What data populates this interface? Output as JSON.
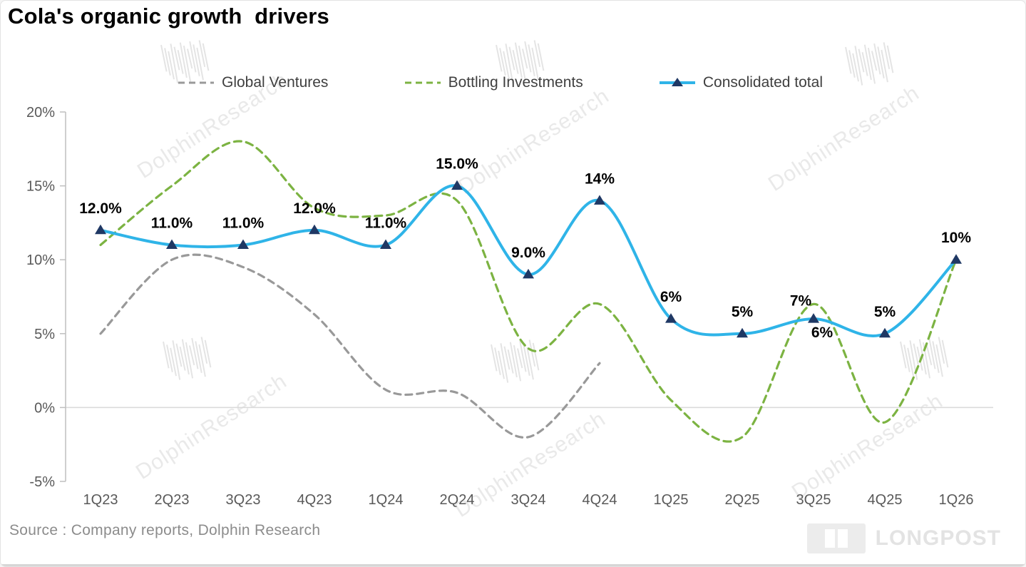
{
  "title": "Cola's organic growth  drivers",
  "source": "Source : Company reports, Dolphin Research",
  "watermark": {
    "text": "DolphinResearch",
    "brand": "LONGPOST"
  },
  "legend": [
    {
      "label": "Global Ventures",
      "color": "#999999",
      "style": "dashed"
    },
    {
      "label": "Bottling Investments",
      "color": "#7cb342",
      "style": "dashed"
    },
    {
      "label": "Consolidated total",
      "color": "#2fb4e8",
      "style": "solid-triangle",
      "marker_color": "#1f3864"
    }
  ],
  "chart_data": {
    "type": "line",
    "title": "Cola's organic growth drivers",
    "categories": [
      "1Q23",
      "2Q23",
      "3Q23",
      "4Q23",
      "1Q24",
      "2Q24",
      "3Q24",
      "4Q24",
      "1Q25",
      "2Q25",
      "3Q25",
      "4Q25",
      "1Q26"
    ],
    "ylim": [
      -5,
      20
    ],
    "grid": "zero-line-only",
    "legend_position": "top",
    "yticks": [
      {
        "value": 20,
        "label": "20%"
      },
      {
        "value": 15,
        "label": "15%"
      },
      {
        "value": 10,
        "label": "10%"
      },
      {
        "value": 5,
        "label": "5%"
      },
      {
        "value": 0,
        "label": "0%"
      },
      {
        "value": -5,
        "label": "-5%"
      }
    ],
    "series": [
      {
        "name": "Global Ventures",
        "color": "#999999",
        "dash": "9 7",
        "width": 3.2,
        "values": [
          5,
          10,
          9.5,
          6.3,
          1.2,
          1,
          -2,
          3,
          null,
          null,
          null,
          null,
          null
        ]
      },
      {
        "name": "Bottling Investments",
        "color": "#7cb342",
        "dash": "10 7",
        "width": 3.2,
        "values": [
          11,
          15,
          18,
          13.5,
          13,
          14,
          4,
          7,
          0.5,
          -2,
          7,
          -1,
          10
        ]
      },
      {
        "name": "Consolidated total",
        "color": "#2fb4e8",
        "dash": null,
        "width": 4,
        "marker": "triangle",
        "marker_color": "#1f3864",
        "values": [
          12,
          11,
          11,
          12,
          11,
          15,
          9,
          14,
          6,
          5,
          6,
          5,
          10
        ],
        "labels": [
          "12.0%",
          "11.0%",
          "11.0%",
          "12.0%",
          "11.0%",
          "15.0%",
          "9.0%",
          "14%",
          "6%",
          "5%",
          "6%",
          "5%",
          "10%"
        ],
        "label_overrides": {
          "10": {
            "dx": 12,
            "dy": 26
          }
        }
      }
    ],
    "extra_labels": [
      {
        "series": 1,
        "index": 10,
        "text": "7%",
        "dx": -18,
        "dy": 2
      }
    ]
  }
}
